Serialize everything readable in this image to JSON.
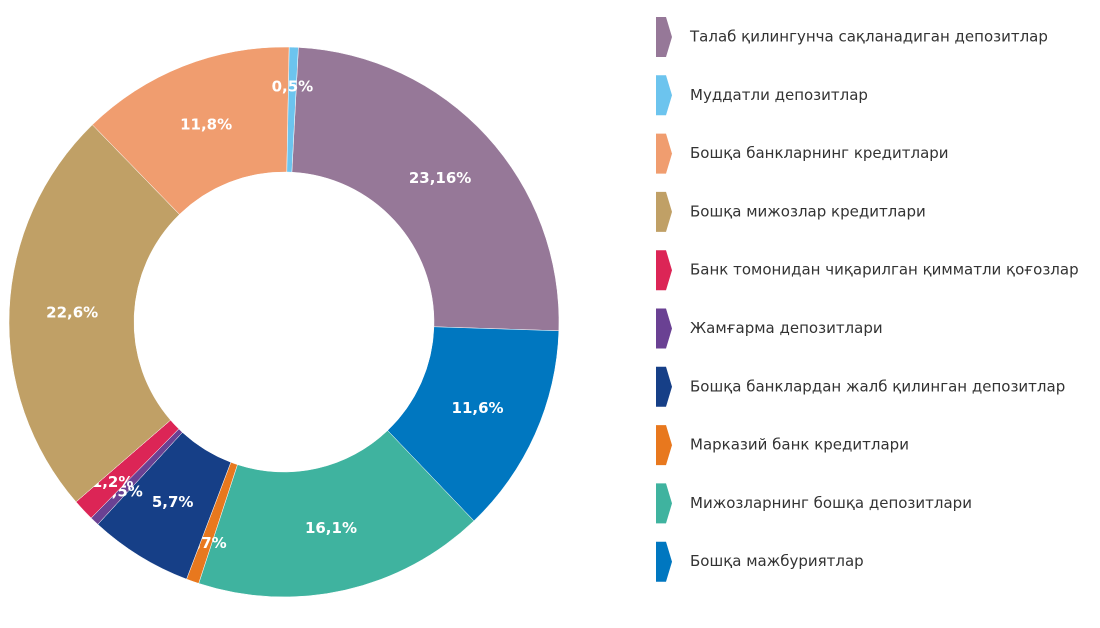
{
  "chart_data": {
    "type": "pie",
    "categories": [
      "Талаб қилингунча сақланадиган депозитлар",
      "Бошқа мажбуриятлар",
      "Мижозларнинг бошқа депозитлари",
      "Марказий банк кредитлари",
      "Бошқа банклардан жалб қилинган депозитлар",
      "Жамғарма депозитлари",
      "Банк томонидан чиқарилган қимматли қоғозлар",
      "Бошқа мижозлар кредитлари",
      "Бошқа банкларнинг кредитлари",
      "Муддатли депозитлар"
    ],
    "values": [
      23.16,
      11.6,
      16.1,
      0.7,
      5.7,
      0.5,
      1.2,
      22.6,
      11.8,
      0.5
    ],
    "value_labels": [
      "23,16%",
      "11,6%",
      "16,1%",
      "0,7%",
      "5,7%",
      "0,5%",
      "1,2%",
      "22,6%",
      "11,8%",
      "0,5%"
    ],
    "colors": [
      "#967898",
      "#0077c0",
      "#3fb39f",
      "#e8781e",
      "#163f87",
      "#6a4193",
      "#dc2556",
      "#c0a066",
      "#f09d6f",
      "#6cc4ee"
    ],
    "donut": true
  }
}
